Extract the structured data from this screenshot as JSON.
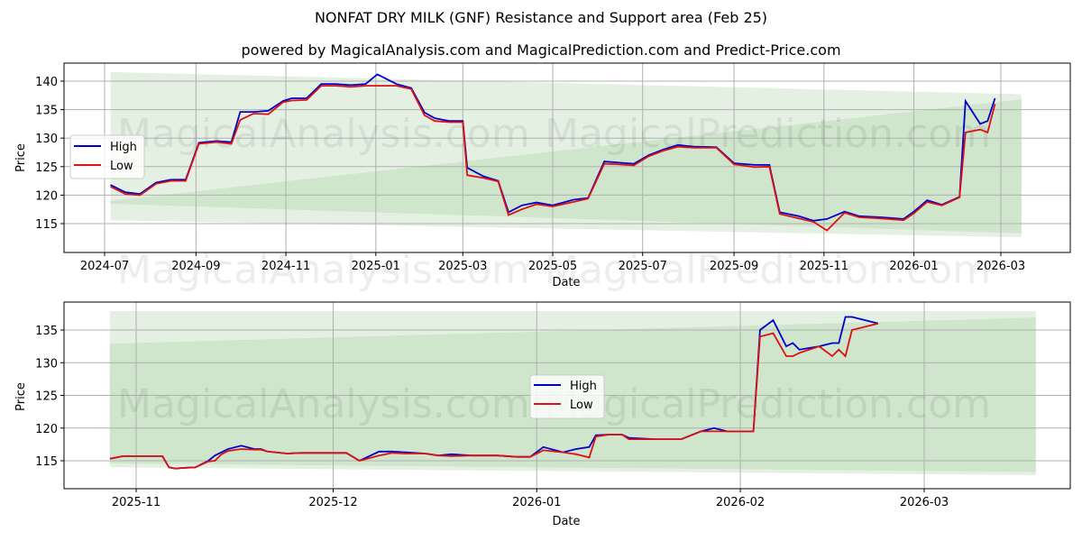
{
  "title": "NONFAT DRY MILK (GNF) Resistance and Support area (Feb 25)",
  "subtitle": "powered by MagicalAnalysis.com and MagicalPrediction.com and Predict-Price.com",
  "watermarks": [
    "MagicalAnalysis.com",
    "MagicalPrediction.com"
  ],
  "colors": {
    "high": "#0000cc",
    "low": "#dd1111",
    "band_light": "#e4f0e2",
    "band_dark": "#cfe5cc",
    "grid": "#b0b0b0"
  },
  "legend": {
    "high_label": "High",
    "low_label": "Low"
  },
  "chart_data": [
    {
      "type": "line",
      "title": "NONFAT DRY MILK (GNF) Resistance and Support area (Feb 25)",
      "xlabel": "Date",
      "ylabel": "Price",
      "ylim": [
        110.5,
        143
      ],
      "yticks": [
        115,
        120,
        125,
        130,
        135,
        140
      ],
      "xticks": [
        "2024-07",
        "2024-09",
        "2024-11",
        "2025-01",
        "2025-03",
        "2025-05",
        "2025-07",
        "2025-09",
        "2025-11",
        "2026-01",
        "2026-03"
      ],
      "grid": true,
      "legend_position": "center left",
      "x": [
        "2024-07-05",
        "2024-07-15",
        "2024-07-25",
        "2024-08-05",
        "2024-08-15",
        "2024-08-25",
        "2024-09-03",
        "2024-09-15",
        "2024-09-25",
        "2024-10-01",
        "2024-10-10",
        "2024-10-20",
        "2024-10-30",
        "2024-11-05",
        "2024-11-15",
        "2024-11-25",
        "2024-12-05",
        "2024-12-15",
        "2024-12-25",
        "2025-01-02",
        "2025-01-15",
        "2025-01-25",
        "2025-02-03",
        "2025-02-10",
        "2025-02-20",
        "2025-03-01",
        "2025-03-04",
        "2025-03-15",
        "2025-03-25",
        "2025-04-01",
        "2025-04-10",
        "2025-04-20",
        "2025-05-01",
        "2025-05-15",
        "2025-05-25",
        "2025-06-05",
        "2025-06-15",
        "2025-06-25",
        "2025-07-05",
        "2025-07-15",
        "2025-07-25",
        "2025-08-05",
        "2025-08-20",
        "2025-09-01",
        "2025-09-15",
        "2025-09-25",
        "2025-10-02",
        "2025-10-15",
        "2025-10-25",
        "2025-11-03",
        "2025-11-15",
        "2025-11-25",
        "2025-12-10",
        "2025-12-25",
        "2026-01-01",
        "2026-01-10",
        "2026-01-20",
        "2026-02-01",
        "2026-02-05",
        "2026-02-15",
        "2026-02-20",
        "2026-02-25"
      ],
      "series": [
        {
          "name": "High",
          "values": [
            121.8,
            120.5,
            120.2,
            122.2,
            122.7,
            122.7,
            129.2,
            129.5,
            129.3,
            134.6,
            134.6,
            134.8,
            136.5,
            137.0,
            137.0,
            139.5,
            139.5,
            139.3,
            139.5,
            141.2,
            139.5,
            138.8,
            134.5,
            133.5,
            133.0,
            133.0,
            124.8,
            123.3,
            122.5,
            117.0,
            118.2,
            118.7,
            118.2,
            119.2,
            119.5,
            125.9,
            125.7,
            125.5,
            127.0,
            128.0,
            128.8,
            128.5,
            128.4,
            125.6,
            125.3,
            125.3,
            117.0,
            116.3,
            115.5,
            115.8,
            117.1,
            116.3,
            116.1,
            115.8,
            117.1,
            119.1,
            118.3,
            119.7,
            136.5,
            132.5,
            133.0,
            137.0
          ]
        },
        {
          "name": "Low",
          "values": [
            121.5,
            120.2,
            120.0,
            122.0,
            122.5,
            122.5,
            129.0,
            129.3,
            129.0,
            133.2,
            134.3,
            134.2,
            136.3,
            136.6,
            136.7,
            139.2,
            139.2,
            139.0,
            139.2,
            139.2,
            139.2,
            138.6,
            134.0,
            133.0,
            132.8,
            132.8,
            123.5,
            123.0,
            122.4,
            116.5,
            117.5,
            118.4,
            118.0,
            118.8,
            119.4,
            125.5,
            125.4,
            125.2,
            126.8,
            127.8,
            128.5,
            128.3,
            128.3,
            125.4,
            124.9,
            125.0,
            116.7,
            115.9,
            115.3,
            113.8,
            116.9,
            116.1,
            115.9,
            115.6,
            116.8,
            118.8,
            118.2,
            119.6,
            131.0,
            131.5,
            131.0,
            136.0
          ]
        }
      ],
      "resistance_band": {
        "start": "2024-07-05",
        "end": "2026-03-15",
        "upper_start": 141.6,
        "upper_end": 137.7,
        "lower_start": 115.6,
        "lower_end": 112.6
      },
      "support_band": {
        "start": "2024-07-05",
        "end": "2026-03-15",
        "upper_start": 119.0,
        "upper_end": 136.8,
        "lower_start": 118.5,
        "lower_end": 113.3
      }
    },
    {
      "type": "line",
      "xlabel": "Date",
      "ylabel": "Price",
      "ylim": [
        110.6,
        139
      ],
      "yticks": [
        115,
        120,
        125,
        130,
        135
      ],
      "xticks": [
        "2025-11",
        "2025-12",
        "2026-01",
        "2026-02",
        "2026-03"
      ],
      "grid": true,
      "legend_position": "center",
      "x": [
        "2025-10-28",
        "2025-10-30",
        "2025-11-01",
        "2025-11-03",
        "2025-11-05",
        "2025-11-06",
        "2025-11-07",
        "2025-11-08",
        "2025-11-10",
        "2025-11-12",
        "2025-11-13",
        "2025-11-14",
        "2025-11-15",
        "2025-11-17",
        "2025-11-19",
        "2025-11-20",
        "2025-11-21",
        "2025-11-24",
        "2025-11-26",
        "2025-11-28",
        "2025-12-01",
        "2025-12-03",
        "2025-12-05",
        "2025-12-08",
        "2025-12-10",
        "2025-12-12",
        "2025-12-15",
        "2025-12-17",
        "2025-12-19",
        "2025-12-22",
        "2025-12-24",
        "2025-12-26",
        "2025-12-29",
        "2025-12-31",
        "2026-01-02",
        "2026-01-05",
        "2026-01-07",
        "2026-01-09",
        "2026-01-10",
        "2026-01-12",
        "2026-01-14",
        "2026-01-15",
        "2026-01-19",
        "2026-01-21",
        "2026-01-23",
        "2026-01-26",
        "2026-01-28",
        "2026-01-30",
        "2026-02-01",
        "2026-02-02",
        "2026-02-03",
        "2026-02-04",
        "2026-02-06",
        "2026-02-08",
        "2026-02-09",
        "2026-02-10",
        "2026-02-13",
        "2026-02-15",
        "2026-02-16",
        "2026-02-17",
        "2026-02-18",
        "2026-02-22"
      ],
      "series": [
        {
          "name": "High",
          "values": [
            115.3,
            115.7,
            115.7,
            115.7,
            115.7,
            114.0,
            113.8,
            113.9,
            114.0,
            115.0,
            115.8,
            116.3,
            116.8,
            117.3,
            116.8,
            116.8,
            116.4,
            116.1,
            116.2,
            116.2,
            116.2,
            116.2,
            115.0,
            116.4,
            116.4,
            116.3,
            116.1,
            115.8,
            116.0,
            115.8,
            115.8,
            115.8,
            115.6,
            115.6,
            117.1,
            116.3,
            116.8,
            117.1,
            118.9,
            119.0,
            119.0,
            118.5,
            118.3,
            118.3,
            118.3,
            119.5,
            120.0,
            119.5,
            119.5,
            119.5,
            119.5,
            135.0,
            136.5,
            132.5,
            133.0,
            132.0,
            132.5,
            133.0,
            133.0,
            137.0,
            137.0,
            136.0
          ]
        },
        {
          "name": "Low",
          "values": [
            115.3,
            115.7,
            115.7,
            115.7,
            115.7,
            114.0,
            113.8,
            113.9,
            114.0,
            114.9,
            115.0,
            116.0,
            116.5,
            116.8,
            116.7,
            116.7,
            116.4,
            116.1,
            116.2,
            116.2,
            116.2,
            116.2,
            115.0,
            115.8,
            116.2,
            116.1,
            116.1,
            115.8,
            115.7,
            115.8,
            115.8,
            115.8,
            115.6,
            115.6,
            116.6,
            116.3,
            116.0,
            115.5,
            118.7,
            119.0,
            119.0,
            118.3,
            118.3,
            118.3,
            118.3,
            119.5,
            119.5,
            119.5,
            119.5,
            119.5,
            119.5,
            134.0,
            134.5,
            131.0,
            131.0,
            131.5,
            132.5,
            131.0,
            132.0,
            131.0,
            135.0,
            136.0
          ]
        }
      ],
      "resistance_band": {
        "start": "2025-10-28",
        "end": "2026-03-18",
        "upper_start": 137.9,
        "upper_end": 137.9,
        "lower_start": 114.0,
        "lower_end": 112.8
      },
      "support_band": {
        "start": "2025-10-28",
        "end": "2026-03-18",
        "upper_start": 132.9,
        "upper_end": 136.9,
        "lower_start": 114.6,
        "lower_end": 113.3
      }
    }
  ]
}
